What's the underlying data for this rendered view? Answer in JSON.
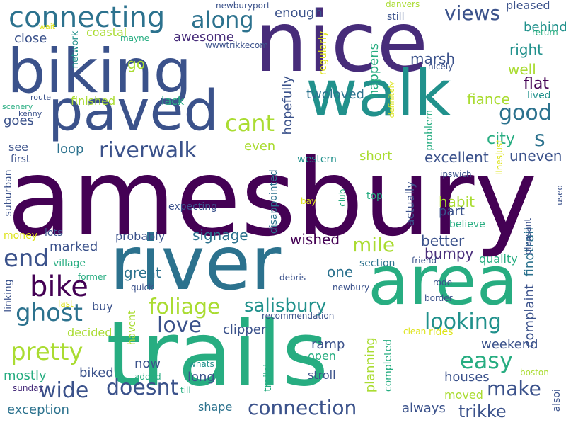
{
  "palette": {
    "p1": "#440154",
    "p2": "#472c7a",
    "p3": "#3b528b",
    "p4": "#2c728e",
    "p5": "#21918c",
    "p6": "#27ad81",
    "p7": "#5ec962",
    "p8": "#aadc32",
    "p9": "#dde318"
  },
  "words": [
    {
      "text": "amesbury",
      "color": "#440154"
    },
    {
      "text": "nice",
      "color": "#472c7a"
    },
    {
      "text": "walk",
      "color": "#21918c"
    },
    {
      "text": "trails",
      "color": "#27ad81"
    },
    {
      "text": "river",
      "color": "#2c728e"
    },
    {
      "text": "biking",
      "color": "#3b528b"
    },
    {
      "text": "area",
      "color": "#27ad81"
    },
    {
      "text": "paved",
      "color": "#3b528b"
    },
    {
      "text": "connecting",
      "color": "#2c728e"
    },
    {
      "text": "along",
      "color": "#2c728e"
    },
    {
      "text": "views",
      "color": "#3b528b"
    },
    {
      "text": "riverwalk",
      "color": "#3b528b"
    },
    {
      "text": "cant",
      "color": "#aadc32"
    },
    {
      "text": "good",
      "color": "#2c728e"
    },
    {
      "text": "s",
      "color": "#2c728e"
    },
    {
      "text": "bike",
      "color": "#440154"
    },
    {
      "text": "end",
      "color": "#3b528b"
    },
    {
      "text": "ghost",
      "color": "#2c728e"
    },
    {
      "text": "pretty",
      "color": "#aadc32"
    },
    {
      "text": "wide",
      "color": "#3b528b"
    },
    {
      "text": "foliage",
      "color": "#aadc32"
    },
    {
      "text": "love",
      "color": "#3b528b"
    },
    {
      "text": "salisbury",
      "color": "#21918c"
    },
    {
      "text": "looking",
      "color": "#21918c"
    },
    {
      "text": "mile",
      "color": "#aadc32"
    },
    {
      "text": "easy",
      "color": "#27ad81"
    },
    {
      "text": "make",
      "color": "#3b528b"
    },
    {
      "text": "doesnt",
      "color": "#3b528b"
    },
    {
      "text": "connection",
      "color": "#3b528b"
    },
    {
      "text": "trikke",
      "color": "#3b528b"
    },
    {
      "text": "awesome",
      "color": "#472c7a"
    },
    {
      "text": "close",
      "color": "#3b528b"
    },
    {
      "text": "go",
      "color": "#aadc32"
    },
    {
      "text": "coastal",
      "color": "#aadc32"
    },
    {
      "text": "network",
      "color": "#21918c"
    },
    {
      "text": "enough",
      "color": "#3b528b"
    },
    {
      "text": "hopefully",
      "color": "#3b528b"
    },
    {
      "text": "regularly",
      "color": "#dde318"
    },
    {
      "text": "happens",
      "color": "#27ad81"
    },
    {
      "text": "marsh",
      "color": "#3b528b"
    },
    {
      "text": "right",
      "color": "#21918c"
    },
    {
      "text": "well",
      "color": "#aadc32"
    },
    {
      "text": "behind",
      "color": "#21918c"
    },
    {
      "text": "pleased",
      "color": "#3b528b"
    },
    {
      "text": "flat",
      "color": "#440154"
    },
    {
      "text": "fiance",
      "color": "#aadc32"
    },
    {
      "text": "lived",
      "color": "#21918c"
    },
    {
      "text": "twoloved",
      "color": "#2c728e"
    },
    {
      "text": "finished",
      "color": "#aadc32"
    },
    {
      "text": "lack",
      "color": "#27ad81"
    },
    {
      "text": "goes",
      "color": "#3b528b"
    },
    {
      "text": "see",
      "color": "#3b528b"
    },
    {
      "text": "loop",
      "color": "#2c728e"
    },
    {
      "text": "first",
      "color": "#3b528b"
    },
    {
      "text": "even",
      "color": "#aadc32"
    },
    {
      "text": "short",
      "color": "#aadc32"
    },
    {
      "text": "excellent",
      "color": "#3b528b"
    },
    {
      "text": "city",
      "color": "#27ad81"
    },
    {
      "text": "uneven",
      "color": "#3b528b"
    },
    {
      "text": "western",
      "color": "#21918c"
    },
    {
      "text": "actually",
      "color": "#3b528b"
    },
    {
      "text": "habit",
      "color": "#aadc32"
    },
    {
      "text": "part",
      "color": "#3b528b"
    },
    {
      "text": "believe",
      "color": "#27ad81"
    },
    {
      "text": "used",
      "color": "#3b528b"
    },
    {
      "text": "expecting",
      "color": "#3b528b"
    },
    {
      "text": "signage",
      "color": "#2c728e"
    },
    {
      "text": "probably",
      "color": "#3b528b"
    },
    {
      "text": "lots",
      "color": "#3b528b"
    },
    {
      "text": "money",
      "color": "#dde318"
    },
    {
      "text": "suburban",
      "color": "#3b528b"
    },
    {
      "text": "marked",
      "color": "#3b528b"
    },
    {
      "text": "village",
      "color": "#27ad81"
    },
    {
      "text": "wished",
      "color": "#440154"
    },
    {
      "text": "better",
      "color": "#3b528b"
    },
    {
      "text": "bumpy",
      "color": "#472c7a"
    },
    {
      "text": "findtrail",
      "color": "#2c728e"
    },
    {
      "text": "quality",
      "color": "#27ad81"
    },
    {
      "text": "great",
      "color": "#2c728e"
    },
    {
      "text": "one",
      "color": "#2c728e"
    },
    {
      "text": "section",
      "color": "#2c728e"
    },
    {
      "text": "linking",
      "color": "#3b528b"
    },
    {
      "text": "buy",
      "color": "#3b528b"
    },
    {
      "text": "clipper",
      "color": "#3b528b"
    },
    {
      "text": "decided",
      "color": "#aadc32"
    },
    {
      "text": "complaint",
      "color": "#3b528b"
    },
    {
      "text": "weekend",
      "color": "#3b528b"
    },
    {
      "text": "ramp",
      "color": "#3b528b"
    },
    {
      "text": "open",
      "color": "#27ad81"
    },
    {
      "text": "planning",
      "color": "#aadc32"
    },
    {
      "text": "mostly",
      "color": "#27ad81"
    },
    {
      "text": "biked",
      "color": "#3b528b"
    },
    {
      "text": "now",
      "color": "#3b528b"
    },
    {
      "text": "long",
      "color": "#3b528b"
    },
    {
      "text": "stroll",
      "color": "#3b528b"
    },
    {
      "text": "houses",
      "color": "#3b528b"
    },
    {
      "text": "always",
      "color": "#3b528b"
    },
    {
      "text": "exception",
      "color": "#2c728e"
    },
    {
      "text": "shape",
      "color": "#2c728e"
    },
    {
      "text": "moved",
      "color": "#aadc32"
    },
    {
      "text": "completed",
      "color": "#27ad81"
    },
    {
      "text": "trailsi",
      "color": "#27ad81"
    },
    {
      "text": "alsoi",
      "color": "#3b528b"
    },
    {
      "text": "newburyport",
      "color": "#3b528b"
    },
    {
      "text": "wwwtrikkecom",
      "color": "#3b528b"
    },
    {
      "text": "mayne",
      "color": "#27ad81"
    },
    {
      "text": "wait",
      "color": "#dde318"
    },
    {
      "text": "danvers",
      "color": "#aadc32"
    },
    {
      "text": "still",
      "color": "#3b528b"
    },
    {
      "text": "return",
      "color": "#27ad81"
    },
    {
      "text": "nicely",
      "color": "#3b528b"
    },
    {
      "text": "route",
      "color": "#3b528b"
    },
    {
      "text": "scenery",
      "color": "#27ad81"
    },
    {
      "text": "kenny",
      "color": "#3b528b"
    },
    {
      "text": "definitely",
      "color": "#dde318"
    },
    {
      "text": "problem",
      "color": "#27ad81"
    },
    {
      "text": "linesjust",
      "color": "#dde318"
    },
    {
      "text": "ipswich",
      "color": "#3b528b"
    },
    {
      "text": "club",
      "color": "#27ad81"
    },
    {
      "text": "bay",
      "color": "#dde318"
    },
    {
      "text": "top",
      "color": "#27ad81"
    },
    {
      "text": "disappointed",
      "color": "#2c728e"
    },
    {
      "text": "pleasant",
      "color": "#3b528b"
    },
    {
      "text": "friend",
      "color": "#3b528b"
    },
    {
      "text": "debris",
      "color": "#3b528b"
    },
    {
      "text": "newbury",
      "color": "#3b528b"
    },
    {
      "text": "rode",
      "color": "#3b528b"
    },
    {
      "text": "border",
      "color": "#3b528b"
    },
    {
      "text": "former",
      "color": "#27ad81"
    },
    {
      "text": "quick",
      "color": "#3b528b"
    },
    {
      "text": "last",
      "color": "#dde318"
    },
    {
      "text": "havent",
      "color": "#aadc32"
    },
    {
      "text": "recommendation",
      "color": "#3b528b"
    },
    {
      "text": "clean",
      "color": "#dde318"
    },
    {
      "text": "rides",
      "color": "#dde318"
    },
    {
      "text": "whats",
      "color": "#21918c"
    },
    {
      "text": "added",
      "color": "#27ad81"
    },
    {
      "text": "sunday",
      "color": "#472c7a"
    },
    {
      "text": "till",
      "color": "#27ad81"
    },
    {
      "text": "boston",
      "color": "#aadc32"
    },
    {
      "text": "lives",
      "color": "#aadc32"
    }
  ]
}
